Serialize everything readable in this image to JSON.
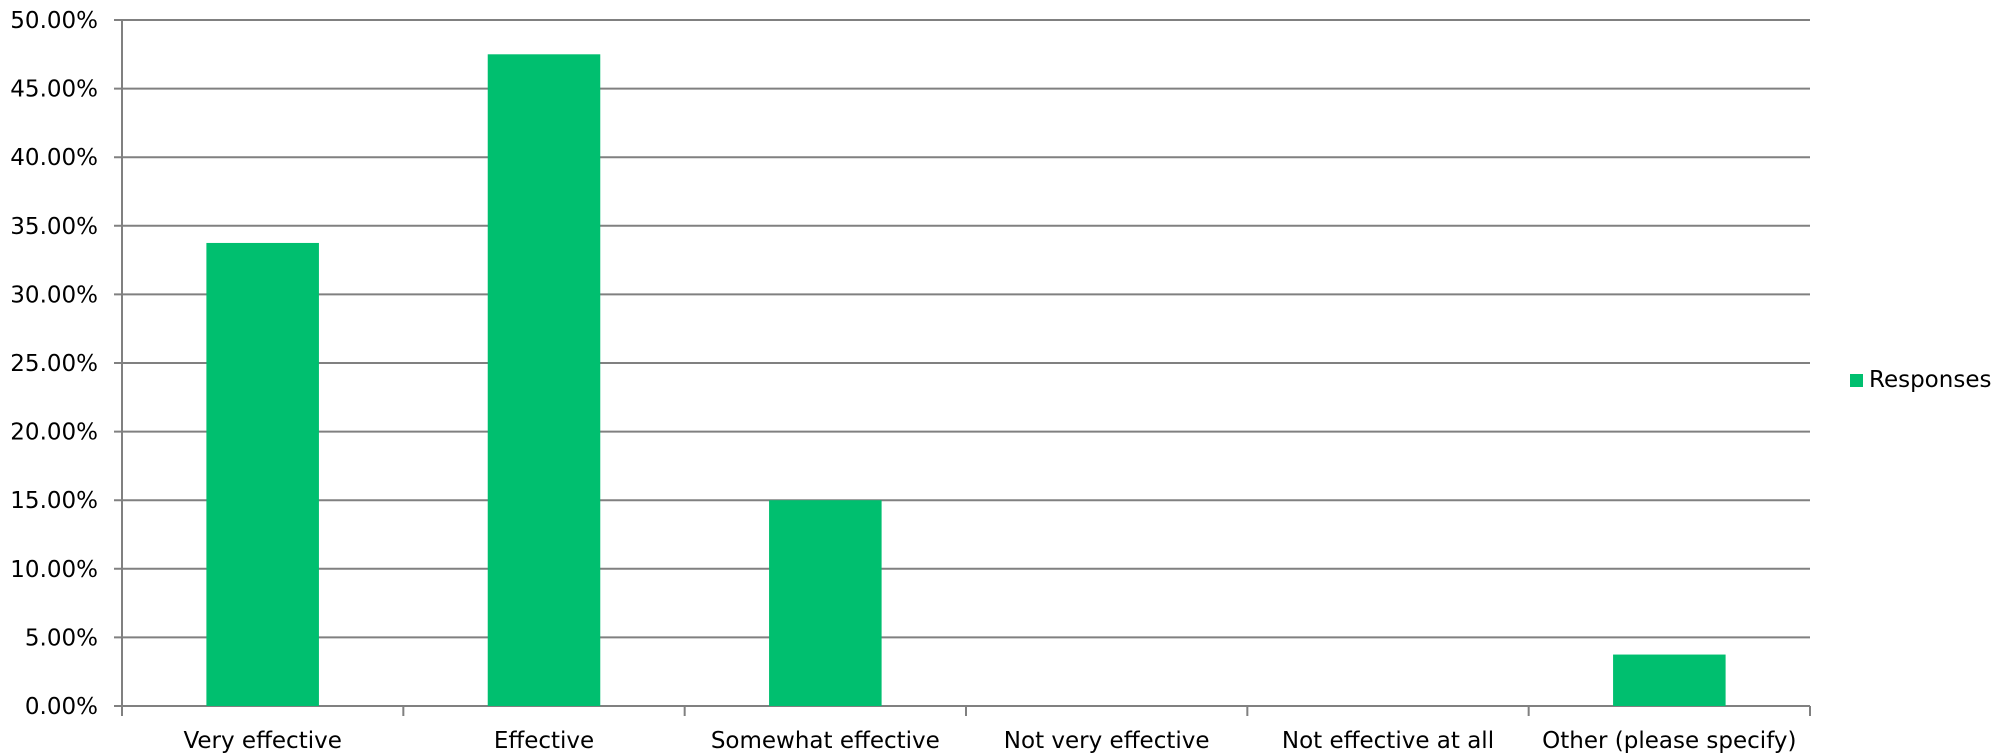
{
  "chart_data": {
    "type": "bar",
    "categories": [
      "Very effective",
      "Effective",
      "Somewhat effective",
      "Not very effective",
      "Not effective at all",
      "Other (please specify)"
    ],
    "series": [
      {
        "name": "Responses",
        "values": [
          33.75,
          47.5,
          15.0,
          0.0,
          0.0,
          3.75
        ],
        "color": "#00bf6f"
      }
    ],
    "ylim": [
      0,
      50
    ],
    "y_ticks": [
      0,
      5,
      10,
      15,
      20,
      25,
      30,
      35,
      40,
      45,
      50
    ],
    "y_tick_labels": [
      "0.00%",
      "5.00%",
      "10.00%",
      "15.00%",
      "20.00%",
      "25.00%",
      "30.00%",
      "35.00%",
      "40.00%",
      "45.00%",
      "50.00%"
    ],
    "grid": true,
    "legend_position": "right",
    "title": "",
    "xlabel": "",
    "ylabel": ""
  },
  "colors": {
    "bar": "#00bf6f",
    "gridline": "#808080",
    "axis": "#808080"
  }
}
